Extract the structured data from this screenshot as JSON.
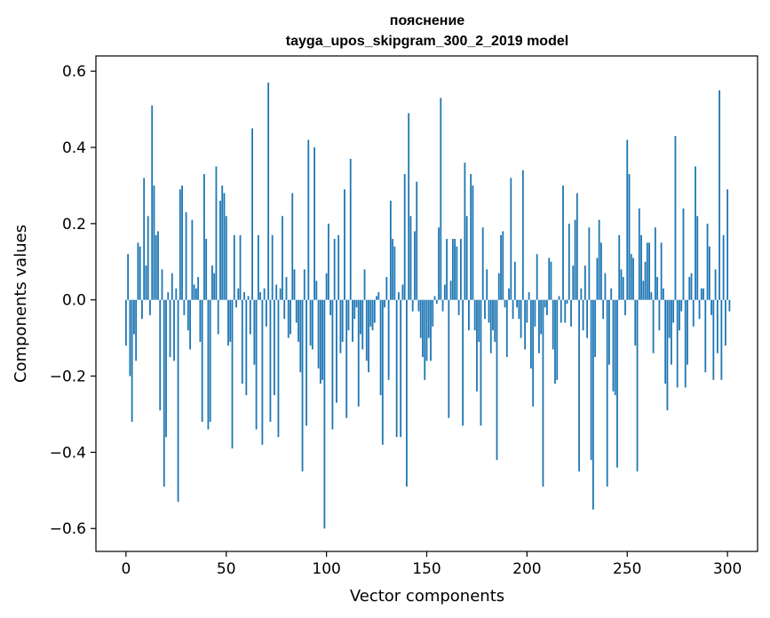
{
  "chart_data": {
    "type": "bar",
    "title": "пояснение",
    "subtitle": "tayga_upos_skipgram_300_2_2019 model",
    "xlabel": "Vector components",
    "ylabel": "Components values",
    "xlim": [
      -15,
      315
    ],
    "ylim": [
      -0.66,
      0.64
    ],
    "xticks": [
      0,
      50,
      100,
      150,
      200,
      250,
      300
    ],
    "yticks": [
      -0.6,
      -0.4,
      -0.2,
      0.0,
      0.2,
      0.4,
      0.6
    ],
    "xtick_labels": [
      "0",
      "50",
      "100",
      "150",
      "200",
      "250",
      "300"
    ],
    "ytick_labels": [
      "−0.6",
      "−0.4",
      "−0.2",
      "0.0",
      "0.2",
      "0.4",
      "0.6"
    ],
    "bar_color": "#1f77b4",
    "grid": false,
    "values": [
      -0.12,
      0.12,
      -0.2,
      -0.32,
      -0.09,
      -0.16,
      0.15,
      0.14,
      -0.05,
      0.32,
      0.09,
      0.22,
      -0.04,
      0.51,
      0.3,
      0.17,
      0.18,
      -0.29,
      0.08,
      -0.49,
      -0.36,
      0.02,
      -0.15,
      0.07,
      -0.16,
      0.03,
      -0.53,
      0.29,
      0.3,
      -0.04,
      0.23,
      -0.08,
      -0.13,
      0.21,
      0.04,
      0.03,
      0.06,
      -0.11,
      -0.32,
      0.33,
      0.16,
      -0.34,
      -0.32,
      0.09,
      0.07,
      0.35,
      -0.09,
      0.26,
      0.3,
      0.28,
      0.22,
      -0.12,
      -0.11,
      -0.39,
      0.17,
      -0.02,
      0.03,
      0.17,
      -0.22,
      0.02,
      -0.25,
      0.01,
      -0.09,
      0.45,
      -0.17,
      -0.34,
      0.17,
      0.02,
      -0.38,
      0.03,
      -0.07,
      0.57,
      -0.32,
      0.17,
      -0.25,
      0.04,
      -0.36,
      0.03,
      0.22,
      -0.05,
      0.06,
      -0.1,
      -0.09,
      0.28,
      0.08,
      -0.06,
      -0.11,
      -0.19,
      -0.45,
      0.08,
      -0.33,
      0.42,
      -0.12,
      -0.13,
      0.4,
      0.05,
      -0.18,
      -0.22,
      -0.21,
      -0.6,
      0.07,
      0.2,
      -0.04,
      -0.34,
      0.16,
      -0.27,
      0.17,
      -0.14,
      -0.11,
      0.29,
      -0.31,
      -0.08,
      0.37,
      -0.11,
      -0.05,
      -0.02,
      -0.28,
      -0.09,
      -0.13,
      0.08,
      -0.16,
      -0.19,
      -0.07,
      -0.08,
      -0.06,
      0.01,
      0.02,
      -0.25,
      -0.38,
      -0.02,
      0.06,
      -0.21,
      0.26,
      0.16,
      0.14,
      -0.36,
      0.02,
      -0.36,
      0.04,
      0.33,
      -0.49,
      0.49,
      0.22,
      -0.03,
      0.18,
      0.31,
      -0.03,
      -0.1,
      -0.15,
      -0.21,
      -0.16,
      -0.1,
      -0.16,
      -0.07,
      0.01,
      -0.01,
      0.19,
      0.53,
      -0.03,
      0.04,
      0.16,
      -0.31,
      0.05,
      0.16,
      0.16,
      0.14,
      -0.04,
      0.16,
      -0.33,
      0.36,
      0.22,
      -0.08,
      0.33,
      0.3,
      -0.08,
      -0.24,
      -0.11,
      -0.33,
      0.19,
      -0.05,
      0.08,
      -0.06,
      -0.14,
      -0.08,
      -0.11,
      -0.42,
      0.07,
      0.17,
      0.18,
      -0.02,
      -0.15,
      0.03,
      0.32,
      -0.05,
      0.1,
      -0.02,
      -0.05,
      -0.1,
      0.34,
      -0.13,
      -0.06,
      0.02,
      -0.18,
      -0.28,
      -0.07,
      0.12,
      -0.14,
      -0.09,
      -0.49,
      -0.02,
      -0.04,
      0.11,
      0.1,
      -0.13,
      -0.22,
      -0.21,
      0.01,
      -0.06,
      0.3,
      -0.06,
      -0.01,
      0.2,
      -0.07,
      0.09,
      0.21,
      0.28,
      -0.45,
      0.03,
      -0.08,
      0.09,
      -0.1,
      0.19,
      -0.42,
      -0.55,
      -0.15,
      0.11,
      0.21,
      0.15,
      -0.05,
      0.07,
      -0.49,
      -0.17,
      0.03,
      -0.24,
      -0.25,
      -0.44,
      0.17,
      0.08,
      0.06,
      -0.04,
      0.42,
      0.33,
      0.12,
      0.11,
      -0.12,
      -0.45,
      0.24,
      0.17,
      0.05,
      0.1,
      0.15,
      0.15,
      0.02,
      -0.14,
      0.19,
      0.06,
      -0.08,
      0.15,
      0.03,
      -0.22,
      -0.29,
      -0.1,
      -0.17,
      -0.06,
      0.43,
      -0.23,
      -0.08,
      -0.03,
      0.24,
      -0.23,
      -0.17,
      0.06,
      0.07,
      -0.07,
      0.35,
      0.22,
      -0.05,
      0.03,
      0.03,
      -0.19,
      0.2,
      0.14,
      -0.04,
      -0.21,
      0.08,
      -0.14,
      0.55,
      -0.21,
      0.17,
      -0.12,
      0.29,
      -0.03
    ]
  }
}
